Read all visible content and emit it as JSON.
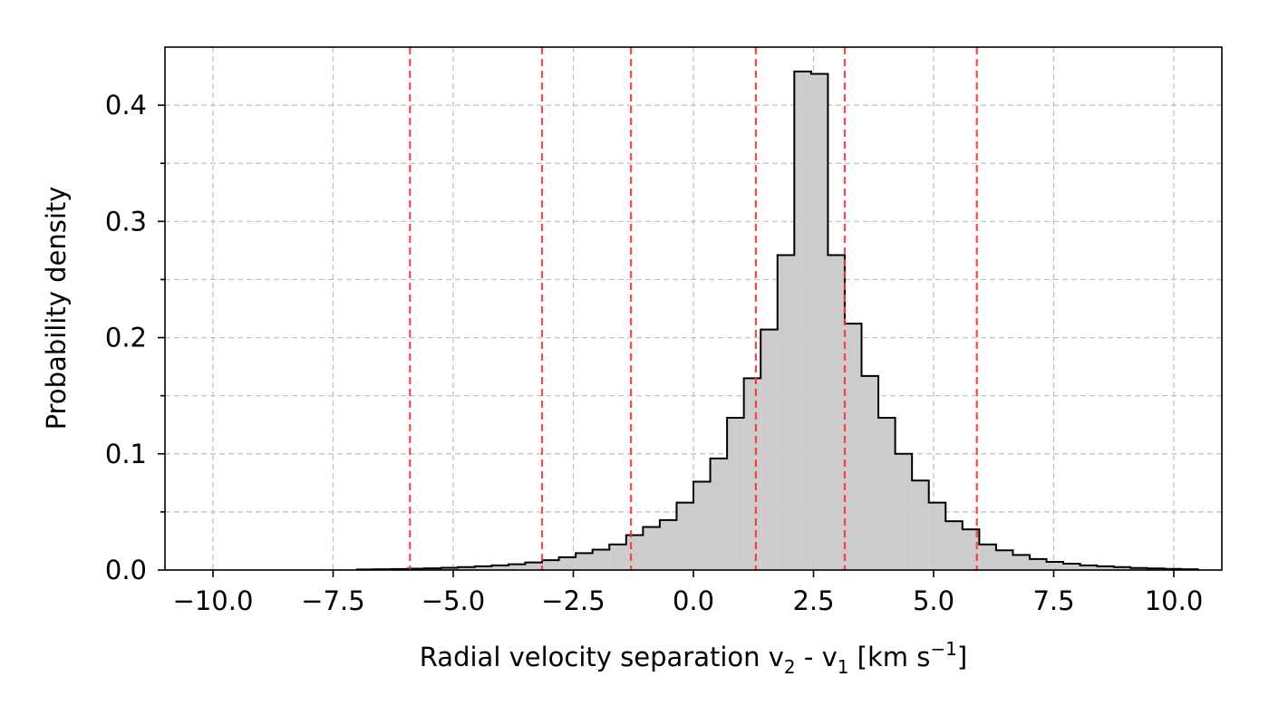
{
  "chart_data": {
    "type": "histogram",
    "xlabel": "Radial velocity separation",
    "xlabel_math": {
      "v1_base": "v",
      "v1_sub": "2",
      "sep": " - ",
      "v2_base": "v",
      "v2_sub": "1",
      "unit_pre": " [km s",
      "unit_sup": "−1",
      "unit_post": "]"
    },
    "ylabel": "Probability density",
    "xlim": [
      -11.0,
      11.0
    ],
    "ylim": [
      0.0,
      0.45
    ],
    "x_ticks": [
      -10.0,
      -7.5,
      -5.0,
      -2.5,
      0.0,
      2.5,
      5.0,
      7.5,
      10.0
    ],
    "x_tick_labels": [
      "−10.0",
      "−7.5",
      "−5.0",
      "−2.5",
      "0.0",
      "2.5",
      "5.0",
      "7.5",
      "10.0"
    ],
    "y_ticks": [
      0.0,
      0.1,
      0.2,
      0.3,
      0.4
    ],
    "y_tick_labels": [
      "0.0",
      "0.1",
      "0.2",
      "0.3",
      "0.4"
    ],
    "y_minor_ticks": [
      0.05,
      0.15,
      0.25,
      0.35
    ],
    "grid": true,
    "bin_width": 0.35,
    "bin_start": -7.0,
    "densities": [
      0.0005,
      0.0007,
      0.0009,
      0.0012,
      0.0015,
      0.0019,
      0.0025,
      0.0032,
      0.004,
      0.005,
      0.0065,
      0.0085,
      0.011,
      0.0145,
      0.0175,
      0.022,
      0.03,
      0.037,
      0.043,
      0.058,
      0.076,
      0.096,
      0.131,
      0.165,
      0.207,
      0.271,
      0.429,
      0.427,
      0.271,
      0.212,
      0.167,
      0.131,
      0.1,
      0.077,
      0.058,
      0.042,
      0.035,
      0.022,
      0.017,
      0.013,
      0.0095,
      0.007,
      0.0055,
      0.004,
      0.0032,
      0.0025,
      0.0018,
      0.0014,
      0.001,
      0.0007
    ],
    "vertical_lines": [
      -5.9,
      -3.15,
      -1.3,
      1.3,
      3.15,
      5.9
    ],
    "colors": {
      "fill": "#cccccc",
      "edge": "#000000",
      "vlines": "#ff3333",
      "grid": "#b0b0b0"
    }
  }
}
